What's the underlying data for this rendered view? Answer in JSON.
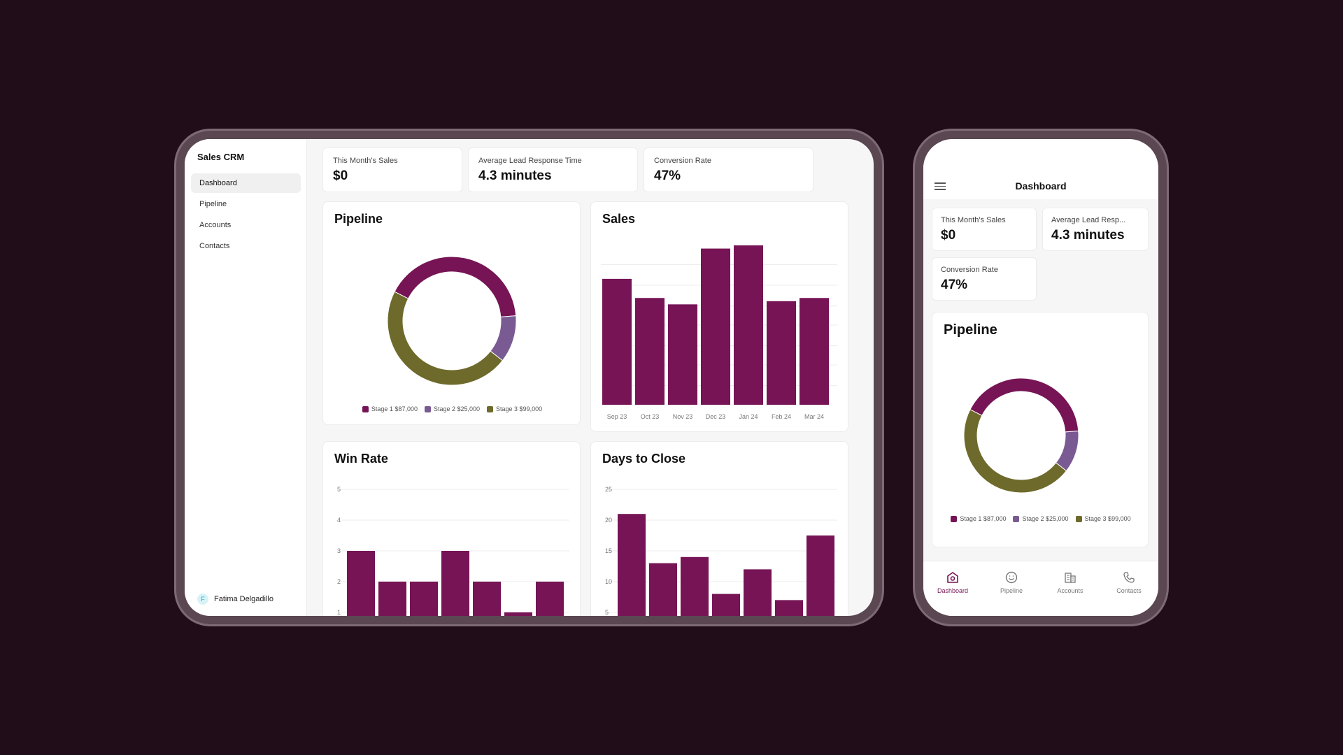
{
  "app": {
    "title": "Sales CRM"
  },
  "sidebar": {
    "items": [
      {
        "label": "Dashboard",
        "active": true
      },
      {
        "label": "Pipeline"
      },
      {
        "label": "Accounts"
      },
      {
        "label": "Contacts"
      }
    ],
    "user": {
      "initial": "F",
      "name": "Fatima Delgadillo"
    }
  },
  "kpis": [
    {
      "label": "This Month's Sales",
      "value": "$0"
    },
    {
      "label": "Average Lead Response Time",
      "value": "4.3 minutes"
    },
    {
      "label": "Conversion Rate",
      "value": "47%"
    }
  ],
  "colors": {
    "accent": "#761455",
    "stage1": "#761455",
    "stage2": "#7a5a92",
    "stage3": "#6d6a2b",
    "background": "#210c1a"
  },
  "cards": {
    "pipeline": "Pipeline",
    "sales": "Sales",
    "win_rate": "Win Rate",
    "days_to_close": "Days to Close"
  },
  "legend": [
    {
      "label": "Stage 1 $87,000"
    },
    {
      "label": "Stage 2 $25,000"
    },
    {
      "label": "Stage 3 $99,000"
    }
  ],
  "phone": {
    "header_title": "Dashboard",
    "kpi_2_label": "Average Lead Resp...",
    "tabs": [
      {
        "label": "Dashboard",
        "icon": "home-icon",
        "active": true
      },
      {
        "label": "Pipeline",
        "icon": "smile-icon"
      },
      {
        "label": "Accounts",
        "icon": "building-icon"
      },
      {
        "label": "Contacts",
        "icon": "phone-icon"
      }
    ]
  },
  "chart_data": [
    {
      "type": "pie",
      "title": "Pipeline",
      "categories": [
        "Stage 1",
        "Stage 2",
        "Stage 3"
      ],
      "values": [
        87000,
        25000,
        99000
      ],
      "donut": true
    },
    {
      "type": "bar",
      "title": "Sales",
      "categories": [
        "Sep 23",
        "Oct 23",
        "Nov 23",
        "Dec 23",
        "Jan 24",
        "Feb 24",
        "Mar 24"
      ],
      "values": [
        79,
        67,
        63,
        98,
        100,
        65,
        67
      ],
      "grid": true
    },
    {
      "type": "bar",
      "title": "Win Rate",
      "categories": [
        "",
        "",
        "",
        "",
        "",
        "",
        ""
      ],
      "values": [
        3,
        2,
        2,
        3,
        2,
        1,
        2
      ],
      "yticks": [
        1,
        2,
        3,
        4,
        5
      ],
      "ylim": [
        1,
        5
      ],
      "grid": true
    },
    {
      "type": "bar",
      "title": "Days to Close",
      "categories": [
        "",
        "",
        "",
        "",
        "",
        "",
        ""
      ],
      "values": [
        21,
        13,
        14,
        8,
        12,
        7,
        17.5
      ],
      "yticks": [
        5,
        10,
        15,
        20,
        25
      ],
      "ylim": [
        0,
        25
      ],
      "grid": true
    }
  ]
}
